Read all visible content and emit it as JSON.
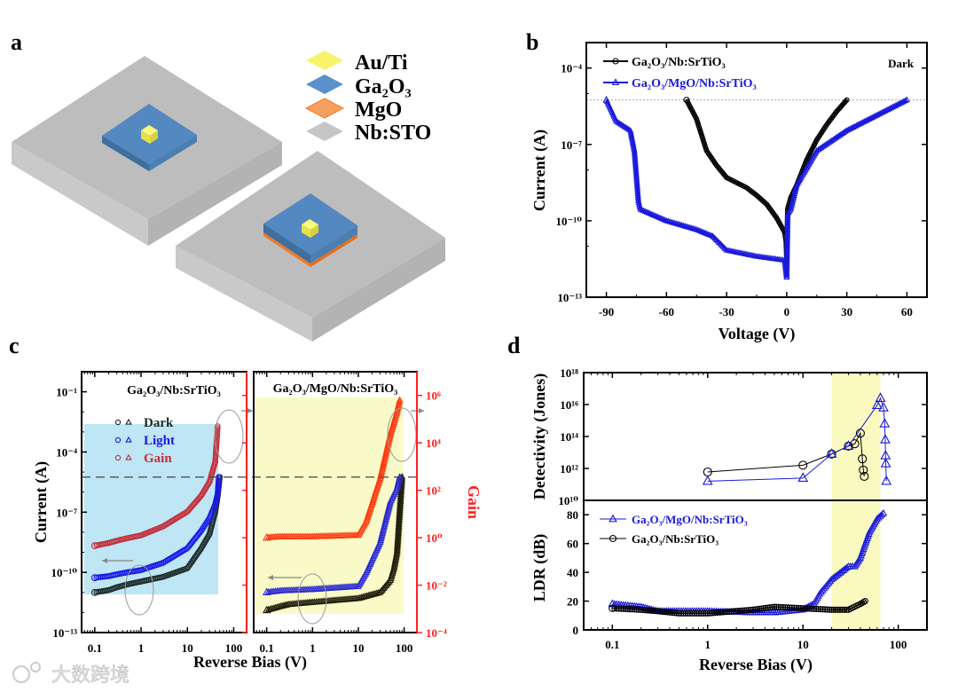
{
  "panels": {
    "a": {
      "label": "a",
      "legend": [
        "Au/Ti",
        "Ga₂O₃",
        "MgO",
        "Nb:STO"
      ],
      "colors": {
        "au": "#f7f36b",
        "ga2o3": "#4f88c6",
        "mgo": "#f07a22",
        "nbsto": "#c0c0c0"
      }
    },
    "b": {
      "label": "b"
    },
    "c": {
      "label": "c"
    },
    "d": {
      "label": "d"
    }
  },
  "watermark": "大数跨境",
  "chart_data": [
    {
      "id": "b",
      "type": "scatter",
      "title": "Dark",
      "xlabel": "Voltage (V)",
      "ylabel": "Current (A)",
      "xlim": [
        -100,
        70
      ],
      "ylim": [
        1e-13,
        0.001
      ],
      "yscale": "log",
      "xticks": [
        -90,
        -60,
        -30,
        0,
        30,
        60
      ],
      "xtick_labels": [
        "-90",
        "-60",
        "-30",
        "0",
        "30",
        "60"
      ],
      "yticks": [
        0.0001,
        1e-07,
        1e-10,
        1e-13
      ],
      "ytick_labels": [
        "10⁻⁴",
        "10⁻⁷",
        "10⁻¹⁰",
        "10⁻¹³"
      ],
      "legend_position": "top-left",
      "reference_line": 5.6e-06,
      "series": [
        {
          "name": "Ga₂O₃/Nb:SrTiO₃",
          "marker": "circle",
          "color": "#000000",
          "x": [
            -50,
            -45,
            -40,
            -35,
            -30,
            -20,
            -15,
            -10,
            -5,
            -1,
            -0.3,
            0,
            0.5,
            2,
            5,
            10,
            15,
            20,
            25,
            30
          ],
          "y": [
            5.6e-06,
            1e-06,
            5.7e-08,
            1.5e-08,
            5e-09,
            2e-09,
            1e-09,
            4.5e-10,
            1.3e-10,
            3.5e-11,
            1.5e-11,
            3e-12,
            3e-10,
            8e-10,
            2.5e-09,
            2.5e-08,
            1.5e-07,
            6e-07,
            2e-06,
            5.6e-06
          ]
        },
        {
          "name": "Ga₂O₃/MgO/Nb:SrTiO₃",
          "marker": "triangle",
          "color": "#1a1adc",
          "x": [
            -90,
            -85,
            -78,
            -76,
            -74,
            -73,
            -60,
            -45,
            -37,
            -30,
            -15,
            -1,
            0,
            0.5,
            2,
            5,
            15,
            30,
            45,
            60
          ],
          "y": [
            5.6e-06,
            8e-07,
            3.5e-07,
            5.6e-08,
            6e-10,
            2.8e-10,
            1e-10,
            4.5e-11,
            2.5e-11,
            7e-12,
            4e-12,
            2.8e-12,
            6e-13,
            1.8e-10,
            2.8e-10,
            2.5e-09,
            5.6e-08,
            3.5e-07,
            1.4e-06,
            5.6e-06
          ]
        }
      ]
    },
    {
      "id": "c-left",
      "type": "scatter",
      "title": "Ga₂O₃/Nb:SrTiO₃",
      "xlabel": "Reverse Bias (V)",
      "ylabel": "Current (A)",
      "xscale": "log",
      "yscale": "log",
      "xlim": [
        0.052,
        190
      ],
      "ylim": [
        1e-13,
        1
      ],
      "xticks": [
        0.1,
        1,
        10,
        100
      ],
      "xtick_labels": [
        "0.1",
        "1",
        "10",
        "100"
      ],
      "yticks": [
        0.1,
        0.0001,
        1e-07,
        1e-10,
        1e-13
      ],
      "ytick_labels": [
        "10⁻¹",
        "10⁻⁴",
        "10⁻⁷",
        "10⁻¹⁰",
        "10⁻¹³"
      ],
      "legend": [
        "Dark",
        "Light",
        "Gain"
      ],
      "legend_position": "upper-left",
      "reference_line": 5.6e-06,
      "series": [
        {
          "name": "Dark",
          "marker": "circle",
          "color": "#1c2a2a",
          "axis": "current",
          "x": [
            0.1,
            0.2,
            0.3,
            0.5,
            1,
            3,
            10,
            20,
            30,
            40,
            45,
            50
          ],
          "y": [
            1e-11,
            1.3e-11,
            1.8e-11,
            2.5e-11,
            3.5e-11,
            6e-11,
            1.6e-10,
            1.6e-09,
            8e-09,
            1e-07,
            6e-07,
            5.7e-06
          ]
        },
        {
          "name": "Light",
          "marker": "circle",
          "color": "#1a1ae6",
          "axis": "current",
          "x": [
            0.1,
            0.2,
            0.3,
            0.5,
            1,
            3,
            10,
            20,
            30,
            40,
            45,
            48
          ],
          "y": [
            5.4e-11,
            6.5e-11,
            8e-11,
            1e-10,
            1.3e-10,
            3e-10,
            1.6e-09,
            1.2e-08,
            5e-08,
            2.5e-07,
            8e-07,
            5.7e-06
          ]
        },
        {
          "name": "Gain",
          "marker": "circle",
          "color": "#c0303c",
          "axis": "gain",
          "x": [
            0.1,
            0.2,
            0.3,
            0.5,
            1,
            3,
            10,
            20,
            30,
            40,
            45
          ],
          "y": [
            0.46,
            0.6,
            0.75,
            0.95,
            1.26,
            3,
            12.6,
            60,
            224,
            1600,
            50000
          ]
        }
      ]
    },
    {
      "id": "c-right",
      "type": "scatter",
      "title": "Ga₂O₃/MgO/Nb:SrTiO₃",
      "xlabel": "Reverse Bias (V)",
      "ylabel": "Gain",
      "xscale": "log",
      "yscale": "log",
      "xlim": [
        0.052,
        190
      ],
      "ylim": [
        0.0001,
        10000000.0
      ],
      "xticks": [
        0.1,
        1,
        10,
        100
      ],
      "xtick_labels": [
        "0.1",
        "1",
        "10",
        "100"
      ],
      "yticks": [
        1000000.0,
        10000.0,
        100.0,
        1,
        0.01,
        0.0001
      ],
      "ytick_labels": [
        "10⁶",
        "10⁴",
        "10²",
        "10⁰",
        "10⁻²",
        "10⁻⁴"
      ],
      "reference_line": 5.6e-06,
      "series": [
        {
          "name": "Dark",
          "marker": "triangle",
          "color": "#1f1f0a",
          "axis": "current",
          "x": [
            0.1,
            0.2,
            0.3,
            1,
            10,
            30,
            50,
            60,
            70,
            80,
            90
          ],
          "y": [
            1.3e-12,
            2e-12,
            2.5e-12,
            3.2e-12,
            5e-12,
            1e-11,
            4e-11,
            1.6e-10,
            1e-09,
            1e-07,
            5.7e-06
          ]
        },
        {
          "name": "Light",
          "marker": "triangle",
          "color": "#2a2ad0",
          "axis": "current",
          "x": [
            0.1,
            0.2,
            1,
            10,
            15,
            30,
            50,
            70,
            80
          ],
          "y": [
            1e-11,
            1.2e-11,
            1.4e-11,
            2e-11,
            1e-10,
            3.2e-09,
            3.2e-07,
            1.6e-06,
            5.7e-06
          ]
        },
        {
          "name": "Gain",
          "marker": "triangle",
          "color": "#ff3a10",
          "axis": "gain",
          "x": [
            0.1,
            0.2,
            1,
            10,
            15,
            30,
            50,
            70,
            80
          ],
          "y": [
            1,
            1.1,
            1.1,
            1.26,
            5,
            316,
            22000,
            200000,
            630000
          ]
        }
      ]
    },
    {
      "id": "d-top",
      "type": "scatter",
      "xlabel": "Reverse Bias (V)",
      "ylabel": "Detectivity (Jones)",
      "xscale": "log",
      "yscale": "log",
      "xlim": [
        0.05,
        200
      ],
      "ylim": [
        10000000000.0,
        1e+18
      ],
      "yticks": [
        1e+18,
        1e+16,
        100000000000000.0,
        1000000000000.0,
        10000000000.0
      ],
      "ytick_labels": [
        "10¹⁸",
        "10¹⁶",
        "10¹⁴",
        "10¹²",
        "10¹⁰"
      ],
      "highlight_x": [
        20,
        65
      ],
      "series": [
        {
          "name": "Ga₂O₃/Nb:SrTiO₃",
          "marker": "circle",
          "color": "#000000",
          "x": [
            1,
            10,
            20,
            30,
            35,
            40,
            42,
            43,
            44
          ],
          "y": [
            600000000000.0,
            1600000000000.0,
            8000000000000.0,
            25000000000000.0,
            35000000000000.0,
            160000000000000.0,
            4000000000000.0,
            800000000000.0,
            320000000000.0
          ]
        },
        {
          "name": "Ga₂O₃/MgO/Nb:SrTiO₃",
          "marker": "triangle",
          "color": "#1a1adc",
          "x": [
            1,
            10,
            20,
            30,
            60,
            65,
            70,
            72,
            73,
            73.5,
            74,
            75
          ],
          "y": [
            160000000000.0,
            250000000000.0,
            8000000000000.0,
            25000000000000.0,
            9000000000000000.0,
            2.5e+16,
            6300000000000000.0,
            630000000000000.0,
            63000000000000.0,
            6300000000000.0,
            2000000000000.0,
            160000000000.0
          ]
        }
      ]
    },
    {
      "id": "d-bottom",
      "type": "line",
      "xlabel": "Reverse Bias (V)",
      "ylabel": "LDR (dB)",
      "xscale": "log",
      "xlim": [
        0.05,
        200
      ],
      "ylim": [
        0,
        90
      ],
      "xticks": [
        0.1,
        1,
        10,
        100
      ],
      "xtick_labels": [
        "0.1",
        "1",
        "10",
        "100"
      ],
      "yticks": [
        0,
        20,
        40,
        60,
        80
      ],
      "ytick_labels": [
        "0",
        "20",
        "40",
        "60",
        "80"
      ],
      "legend_position": "upper-left",
      "highlight_x": [
        20,
        65
      ],
      "series": [
        {
          "name": "Ga₂O₃/MgO/Nb:SrTiO₃",
          "marker": "triangle",
          "color": "#1a1adc",
          "x": [
            0.1,
            0.2,
            0.3,
            0.5,
            1,
            3,
            5,
            10,
            13,
            15,
            20,
            30,
            35,
            40,
            50,
            60,
            70
          ],
          "y": [
            18,
            16,
            13,
            13,
            13,
            12,
            12,
            14,
            18,
            25,
            35,
            44,
            44,
            50,
            68,
            77,
            81
          ]
        },
        {
          "name": "Ga₂O₃/Nb:SrTiO₃",
          "marker": "circle",
          "color": "#000000",
          "x": [
            0.1,
            0.2,
            0.3,
            0.5,
            1,
            3,
            5,
            10,
            20,
            30,
            40,
            45
          ],
          "y": [
            15,
            14,
            13,
            11.5,
            11.5,
            14,
            16,
            15,
            14,
            14,
            18,
            20
          ]
        }
      ]
    }
  ]
}
